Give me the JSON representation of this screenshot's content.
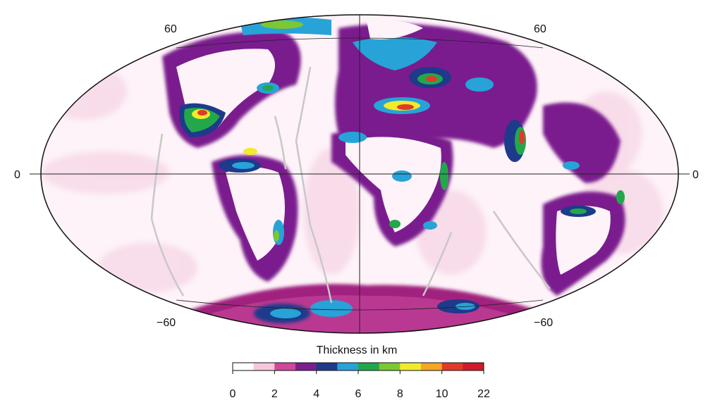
{
  "map": {
    "projection": "Mollweide",
    "graticule_labels": {
      "lat_north_left": "60",
      "lat_north_right": "60",
      "equator_left": "0",
      "equator_right": "0",
      "lat_south_left": "−60",
      "lat_south_right": "−60"
    },
    "colors": {
      "background": "#fdf3f8",
      "land_outline": "#555555",
      "ridges": "#c8c8c8",
      "graticule": "#222222"
    }
  },
  "legend": {
    "title": "Thickness in km",
    "ticks": [
      "0",
      "2",
      "4",
      "6",
      "8",
      "10",
      "22"
    ],
    "colors": [
      "#ffffff",
      "#f6c6dc",
      "#d0489a",
      "#7a1f8e",
      "#1e3a8a",
      "#27a3d8",
      "#22a84a",
      "#7cc832",
      "#f2ea2c",
      "#f5a623",
      "#e23a2a",
      "#d11a2a"
    ]
  }
}
